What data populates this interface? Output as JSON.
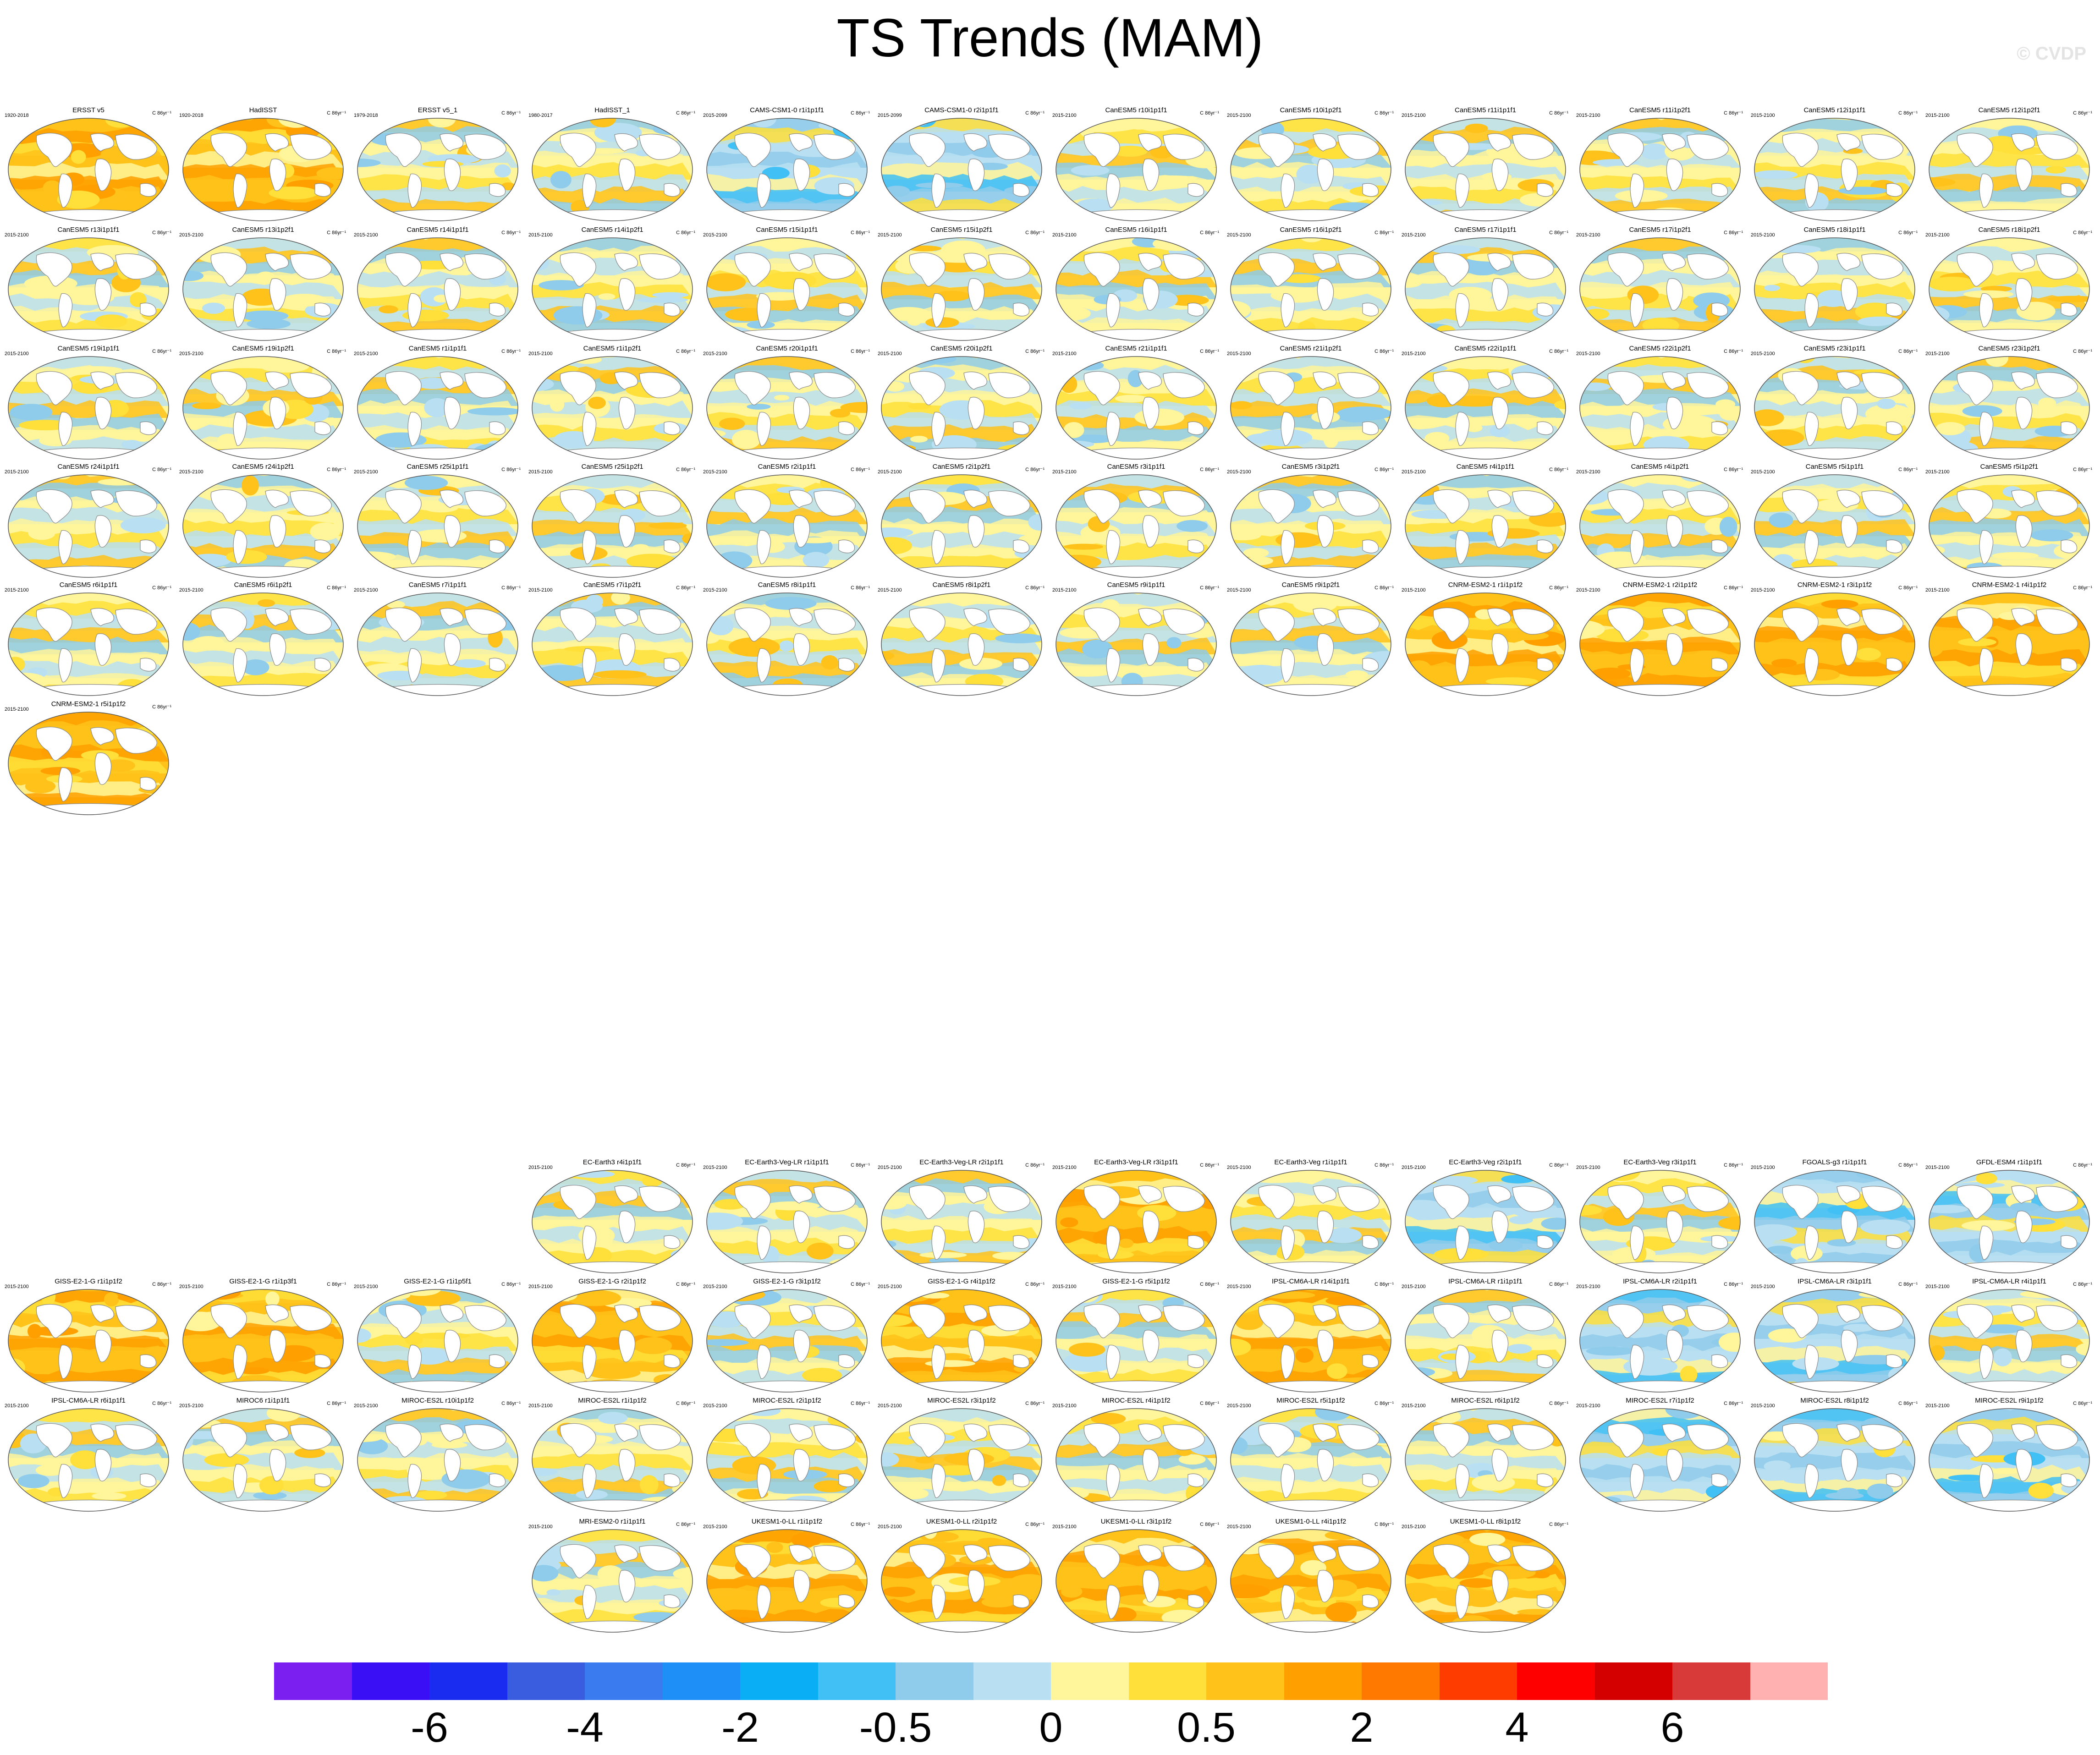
{
  "title": "TS Trends (MAM)",
  "watermark": "© CVDP",
  "unit": "C 86yr⁻¹",
  "colorbar": {
    "colors": [
      "#7a1ff0",
      "#3a0ff5",
      "#1a2cf0",
      "#3a5de0",
      "#3a7cf0",
      "#1e8ff6",
      "#0aaef5",
      "#40c0f5",
      "#8fcbea",
      "#b9dff2",
      "#fff59a",
      "#ffe03a",
      "#ffc21a",
      "#ffa000",
      "#ff7800",
      "#ff3c00",
      "#ff0000",
      "#d40000",
      "#d83a3a",
      "#ffb0b0"
    ],
    "labels": [
      "-6",
      "-4",
      "-2",
      "-0.5",
      "0",
      "0.5",
      "2",
      "4",
      "6"
    ]
  },
  "top_block": [
    {
      "title": "ERSST v5",
      "years": "1920-2018",
      "tone": "warm"
    },
    {
      "title": "HadISST",
      "years": "1920-2018",
      "tone": "warm"
    },
    {
      "title": "ERSST v5_1",
      "years": "1979-2018",
      "tone": "mix"
    },
    {
      "title": "HadISST_1",
      "years": "1980-2017",
      "tone": "mix"
    },
    {
      "title": "CAMS-CSM1-0 r1i1p1f1",
      "years": "2015-2099",
      "tone": "cool"
    },
    {
      "title": "CAMS-CSM1-0 r2i1p1f1",
      "years": "2015-2099",
      "tone": "cool"
    },
    {
      "title": "CanESM5 r10i1p1f1",
      "years": "2015-2100",
      "tone": "mix"
    },
    {
      "title": "CanESM5 r10i1p2f1",
      "years": "2015-2100",
      "tone": "mix"
    },
    {
      "title": "CanESM5 r11i1p1f1",
      "years": "2015-2100",
      "tone": "mix"
    },
    {
      "title": "CanESM5 r11i1p2f1",
      "years": "2015-2100",
      "tone": "mix"
    },
    {
      "title": "CanESM5 r12i1p1f1",
      "years": "2015-2100",
      "tone": "mix"
    },
    {
      "title": "CanESM5 r12i1p2f1",
      "years": "2015-2100",
      "tone": "mix"
    },
    {
      "title": "CanESM5 r13i1p1f1",
      "years": "2015-2100",
      "tone": "mix"
    },
    {
      "title": "CanESM5 r13i1p2f1",
      "years": "2015-2100",
      "tone": "mix"
    },
    {
      "title": "CanESM5 r14i1p1f1",
      "years": "2015-2100",
      "tone": "mix"
    },
    {
      "title": "CanESM5 r14i1p2f1",
      "years": "2015-2100",
      "tone": "mix"
    },
    {
      "title": "CanESM5 r15i1p1f1",
      "years": "2015-2100",
      "tone": "mix"
    },
    {
      "title": "CanESM5 r15i1p2f1",
      "years": "2015-2100",
      "tone": "mix"
    },
    {
      "title": "CanESM5 r16i1p1f1",
      "years": "2015-2100",
      "tone": "mix"
    },
    {
      "title": "CanESM5 r16i1p2f1",
      "years": "2015-2100",
      "tone": "mix"
    },
    {
      "title": "CanESM5 r17i1p1f1",
      "years": "2015-2100",
      "tone": "mix"
    },
    {
      "title": "CanESM5 r17i1p2f1",
      "years": "2015-2100",
      "tone": "mix"
    },
    {
      "title": "CanESM5 r18i1p1f1",
      "years": "2015-2100",
      "tone": "mix"
    },
    {
      "title": "CanESM5 r18i1p2f1",
      "years": "2015-2100",
      "tone": "mix"
    },
    {
      "title": "CanESM5 r19i1p1f1",
      "years": "2015-2100",
      "tone": "mix"
    },
    {
      "title": "CanESM5 r19i1p2f1",
      "years": "2015-2100",
      "tone": "mix"
    },
    {
      "title": "CanESM5 r1i1p1f1",
      "years": "2015-2100",
      "tone": "mix"
    },
    {
      "title": "CanESM5 r1i1p2f1",
      "years": "2015-2100",
      "tone": "mix"
    },
    {
      "title": "CanESM5 r20i1p1f1",
      "years": "2015-2100",
      "tone": "mix"
    },
    {
      "title": "CanESM5 r20i1p2f1",
      "years": "2015-2100",
      "tone": "mix"
    },
    {
      "title": "CanESM5 r21i1p1f1",
      "years": "2015-2100",
      "tone": "mix"
    },
    {
      "title": "CanESM5 r21i1p2f1",
      "years": "2015-2100",
      "tone": "mix"
    },
    {
      "title": "CanESM5 r22i1p1f1",
      "years": "2015-2100",
      "tone": "mix"
    },
    {
      "title": "CanESM5 r22i1p2f1",
      "years": "2015-2100",
      "tone": "mix"
    },
    {
      "title": "CanESM5 r23i1p1f1",
      "years": "2015-2100",
      "tone": "mix"
    },
    {
      "title": "CanESM5 r23i1p2f1",
      "years": "2015-2100",
      "tone": "mix"
    },
    {
      "title": "CanESM5 r24i1p1f1",
      "years": "2015-2100",
      "tone": "mix"
    },
    {
      "title": "CanESM5 r24i1p2f1",
      "years": "2015-2100",
      "tone": "mix"
    },
    {
      "title": "CanESM5 r25i1p1f1",
      "years": "2015-2100",
      "tone": "mix"
    },
    {
      "title": "CanESM5 r25i1p2f1",
      "years": "2015-2100",
      "tone": "mix"
    },
    {
      "title": "CanESM5 r2i1p1f1",
      "years": "2015-2100",
      "tone": "mix"
    },
    {
      "title": "CanESM5 r2i1p2f1",
      "years": "2015-2100",
      "tone": "mix"
    },
    {
      "title": "CanESM5 r3i1p1f1",
      "years": "2015-2100",
      "tone": "mix"
    },
    {
      "title": "CanESM5 r3i1p2f1",
      "years": "2015-2100",
      "tone": "mix"
    },
    {
      "title": "CanESM5 r4i1p1f1",
      "years": "2015-2100",
      "tone": "mix"
    },
    {
      "title": "CanESM5 r4i1p2f1",
      "years": "2015-2100",
      "tone": "mix"
    },
    {
      "title": "CanESM5 r5i1p1f1",
      "years": "2015-2100",
      "tone": "mix"
    },
    {
      "title": "CanESM5 r5i1p2f1",
      "years": "2015-2100",
      "tone": "mix"
    },
    {
      "title": "CanESM5 r6i1p1f1",
      "years": "2015-2100",
      "tone": "mix"
    },
    {
      "title": "CanESM5 r6i1p2f1",
      "years": "2015-2100",
      "tone": "mix"
    },
    {
      "title": "CanESM5 r7i1p1f1",
      "years": "2015-2100",
      "tone": "mix"
    },
    {
      "title": "CanESM5 r7i1p2f1",
      "years": "2015-2100",
      "tone": "mix"
    },
    {
      "title": "CanESM5 r8i1p1f1",
      "years": "2015-2100",
      "tone": "mix"
    },
    {
      "title": "CanESM5 r8i1p2f1",
      "years": "2015-2100",
      "tone": "mix"
    },
    {
      "title": "CanESM5 r9i1p1f1",
      "years": "2015-2100",
      "tone": "mix"
    },
    {
      "title": "CanESM5 r9i1p2f1",
      "years": "2015-2100",
      "tone": "mix"
    },
    {
      "title": "CNRM-ESM2-1 r1i1p1f2",
      "years": "2015-2100",
      "tone": "warm"
    },
    {
      "title": "CNRM-ESM2-1 r2i1p1f2",
      "years": "2015-2100",
      "tone": "warm"
    },
    {
      "title": "CNRM-ESM2-1 r3i1p1f2",
      "years": "2015-2100",
      "tone": "warm"
    },
    {
      "title": "CNRM-ESM2-1 r4i1p1f2",
      "years": "2015-2100",
      "tone": "warm"
    },
    {
      "title": "CNRM-ESM2-1 r5i1p1f2",
      "years": "2015-2100",
      "tone": "warm"
    }
  ],
  "bottom_row1": [
    {
      "title": "EC-Earth3 r4i1p1f1",
      "years": "2015-2100",
      "tone": "mix"
    },
    {
      "title": "EC-Earth3-Veg-LR r1i1p1f1",
      "years": "2015-2100",
      "tone": "mix"
    },
    {
      "title": "EC-Earth3-Veg-LR r2i1p1f1",
      "years": "2015-2100",
      "tone": "mix"
    },
    {
      "title": "EC-Earth3-Veg-LR r3i1p1f1",
      "years": "2015-2100",
      "tone": "warm"
    },
    {
      "title": "EC-Earth3-Veg r1i1p1f1",
      "years": "2015-2100",
      "tone": "mix"
    },
    {
      "title": "EC-Earth3-Veg r2i1p1f1",
      "years": "2015-2100",
      "tone": "cool"
    },
    {
      "title": "EC-Earth3-Veg r3i1p1f1",
      "years": "2015-2100",
      "tone": "mix"
    },
    {
      "title": "FGOALS-g3 r1i1p1f1",
      "years": "2015-2100",
      "tone": "cool"
    },
    {
      "title": "GFDL-ESM4 r1i1p1f1",
      "years": "2015-2100",
      "tone": "cool"
    }
  ],
  "bottom_block": [
    {
      "title": "GISS-E2-1-G r1i1p1f2",
      "years": "2015-2100",
      "tone": "warm"
    },
    {
      "title": "GISS-E2-1-G r1i1p3f1",
      "years": "2015-2100",
      "tone": "warm"
    },
    {
      "title": "GISS-E2-1-G r1i1p5f1",
      "years": "2015-2100",
      "tone": "mix"
    },
    {
      "title": "GISS-E2-1-G r2i1p1f2",
      "years": "2015-2100",
      "tone": "warm"
    },
    {
      "title": "GISS-E2-1-G r3i1p1f2",
      "years": "2015-2100",
      "tone": "mix"
    },
    {
      "title": "GISS-E2-1-G r4i1p1f2",
      "years": "2015-2100",
      "tone": "warm"
    },
    {
      "title": "GISS-E2-1-G r5i1p1f2",
      "years": "2015-2100",
      "tone": "mix"
    },
    {
      "title": "IPSL-CM6A-LR r14i1p1f1",
      "years": "2015-2100",
      "tone": "warm"
    },
    {
      "title": "IPSL-CM6A-LR r1i1p1f1",
      "years": "2015-2100",
      "tone": "mix"
    },
    {
      "title": "IPSL-CM6A-LR r2i1p1f1",
      "years": "2015-2100",
      "tone": "cool"
    },
    {
      "title": "IPSL-CM6A-LR r3i1p1f1",
      "years": "2015-2100",
      "tone": "cool"
    },
    {
      "title": "IPSL-CM6A-LR r4i1p1f1",
      "years": "2015-2100",
      "tone": "mix"
    },
    {
      "title": "IPSL-CM6A-LR r6i1p1f1",
      "years": "2015-2100",
      "tone": "mix"
    },
    {
      "title": "MIROC6 r1i1p1f1",
      "years": "2015-2100",
      "tone": "mix"
    },
    {
      "title": "MIROC-ES2L r10i1p1f2",
      "years": "2015-2100",
      "tone": "mix"
    },
    {
      "title": "MIROC-ES2L r1i1p1f2",
      "years": "2015-2100",
      "tone": "mix"
    },
    {
      "title": "MIROC-ES2L r2i1p1f2",
      "years": "2015-2100",
      "tone": "mix"
    },
    {
      "title": "MIROC-ES2L r3i1p1f2",
      "years": "2015-2100",
      "tone": "mix"
    },
    {
      "title": "MIROC-ES2L r4i1p1f2",
      "years": "2015-2100",
      "tone": "mix"
    },
    {
      "title": "MIROC-ES2L r5i1p1f2",
      "years": "2015-2100",
      "tone": "mix"
    },
    {
      "title": "MIROC-ES2L r6i1p1f2",
      "years": "2015-2100",
      "tone": "mix"
    },
    {
      "title": "MIROC-ES2L r7i1p1f2",
      "years": "2015-2100",
      "tone": "cool"
    },
    {
      "title": "MIROC-ES2L r8i1p1f2",
      "years": "2015-2100",
      "tone": "cool"
    },
    {
      "title": "MIROC-ES2L r9i1p1f2",
      "years": "2015-2100",
      "tone": "cool"
    }
  ],
  "bottom_row4": [
    {
      "title": "MRI-ESM2-0 r1i1p1f1",
      "years": "2015-2100",
      "tone": "mix"
    },
    {
      "title": "UKESM1-0-LL r1i1p1f2",
      "years": "2015-2100",
      "tone": "warm"
    },
    {
      "title": "UKESM1-0-LL r2i1p1f2",
      "years": "2015-2100",
      "tone": "warm"
    },
    {
      "title": "UKESM1-0-LL r3i1p1f2",
      "years": "2015-2100",
      "tone": "warm"
    },
    {
      "title": "UKESM1-0-LL r4i1p1f2",
      "years": "2015-2100",
      "tone": "warm"
    },
    {
      "title": "UKESM1-0-LL r8i1p1f2",
      "years": "2015-2100",
      "tone": "warm"
    }
  ]
}
